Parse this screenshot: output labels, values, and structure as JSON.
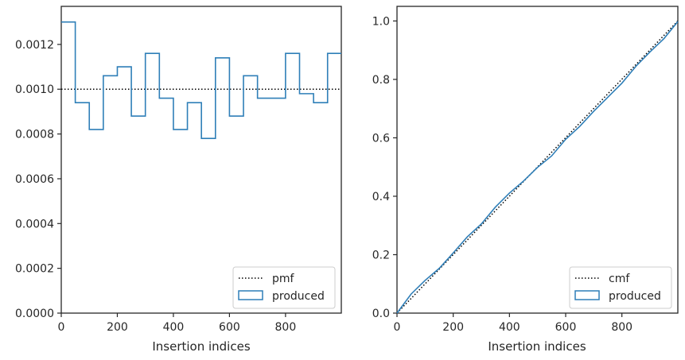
{
  "chart_data": [
    {
      "type": "step",
      "xlabel": "Insertion indices",
      "ylabel": "",
      "xlim": [
        0,
        999
      ],
      "ylim": [
        0,
        0.00137
      ],
      "xticks": [
        0,
        200,
        400,
        600,
        800
      ],
      "xtick_labels": [
        "0",
        "200",
        "400",
        "600",
        "800"
      ],
      "yticks": [
        0,
        0.0002,
        0.0004,
        0.0006,
        0.0008,
        0.001,
        0.0012
      ],
      "ytick_labels": [
        "0.0000",
        "0.0002",
        "0.0004",
        "0.0006",
        "0.0008",
        "0.0010",
        "0.0012"
      ],
      "legend": {
        "position": "lower-right",
        "entries": [
          "pmf",
          "produced"
        ]
      },
      "series": [
        {
          "name": "pmf",
          "style": "dotted",
          "color": "#000000",
          "x": [
            0,
            999
          ],
          "values": [
            0.001,
            0.001
          ]
        },
        {
          "name": "produced",
          "style": "step",
          "color": "#2f7fb8",
          "bin_edges": [
            0,
            50,
            100,
            150,
            200,
            250,
            300,
            350,
            400,
            450,
            500,
            550,
            600,
            650,
            700,
            750,
            800,
            850,
            900,
            950,
            1000
          ],
          "values": [
            0.0013,
            0.00094,
            0.00082,
            0.00106,
            0.0011,
            0.00088,
            0.00116,
            0.00096,
            0.00082,
            0.00094,
            0.00078,
            0.00114,
            0.00088,
            0.00106,
            0.00096,
            0.00096,
            0.00116,
            0.00098,
            0.00094,
            0.00116
          ]
        }
      ]
    },
    {
      "type": "line",
      "xlabel": "Insertion indices",
      "ylabel": "",
      "xlim": [
        0,
        999
      ],
      "ylim": [
        0,
        1.05
      ],
      "xticks": [
        0,
        200,
        400,
        600,
        800
      ],
      "xtick_labels": [
        "0",
        "200",
        "400",
        "600",
        "800"
      ],
      "yticks": [
        0,
        0.2,
        0.4,
        0.6,
        0.8,
        1.0
      ],
      "ytick_labels": [
        "0.0",
        "0.2",
        "0.4",
        "0.6",
        "0.8",
        "1.0"
      ],
      "legend": {
        "position": "lower-right",
        "entries": [
          "cmf",
          "produced"
        ]
      },
      "series": [
        {
          "name": "cmf",
          "style": "dotted",
          "color": "#000000",
          "x": [
            0,
            999
          ],
          "values": [
            0,
            1.0
          ]
        },
        {
          "name": "produced",
          "style": "line",
          "color": "#2f7fb8",
          "x": [
            0,
            50,
            100,
            150,
            200,
            250,
            300,
            350,
            400,
            450,
            500,
            550,
            600,
            650,
            700,
            750,
            800,
            850,
            900,
            950,
            999
          ],
          "values": [
            0.0,
            0.065,
            0.112,
            0.153,
            0.206,
            0.261,
            0.305,
            0.363,
            0.411,
            0.452,
            0.499,
            0.538,
            0.595,
            0.639,
            0.691,
            0.739,
            0.787,
            0.845,
            0.894,
            0.94,
            0.998
          ]
        }
      ]
    }
  ]
}
